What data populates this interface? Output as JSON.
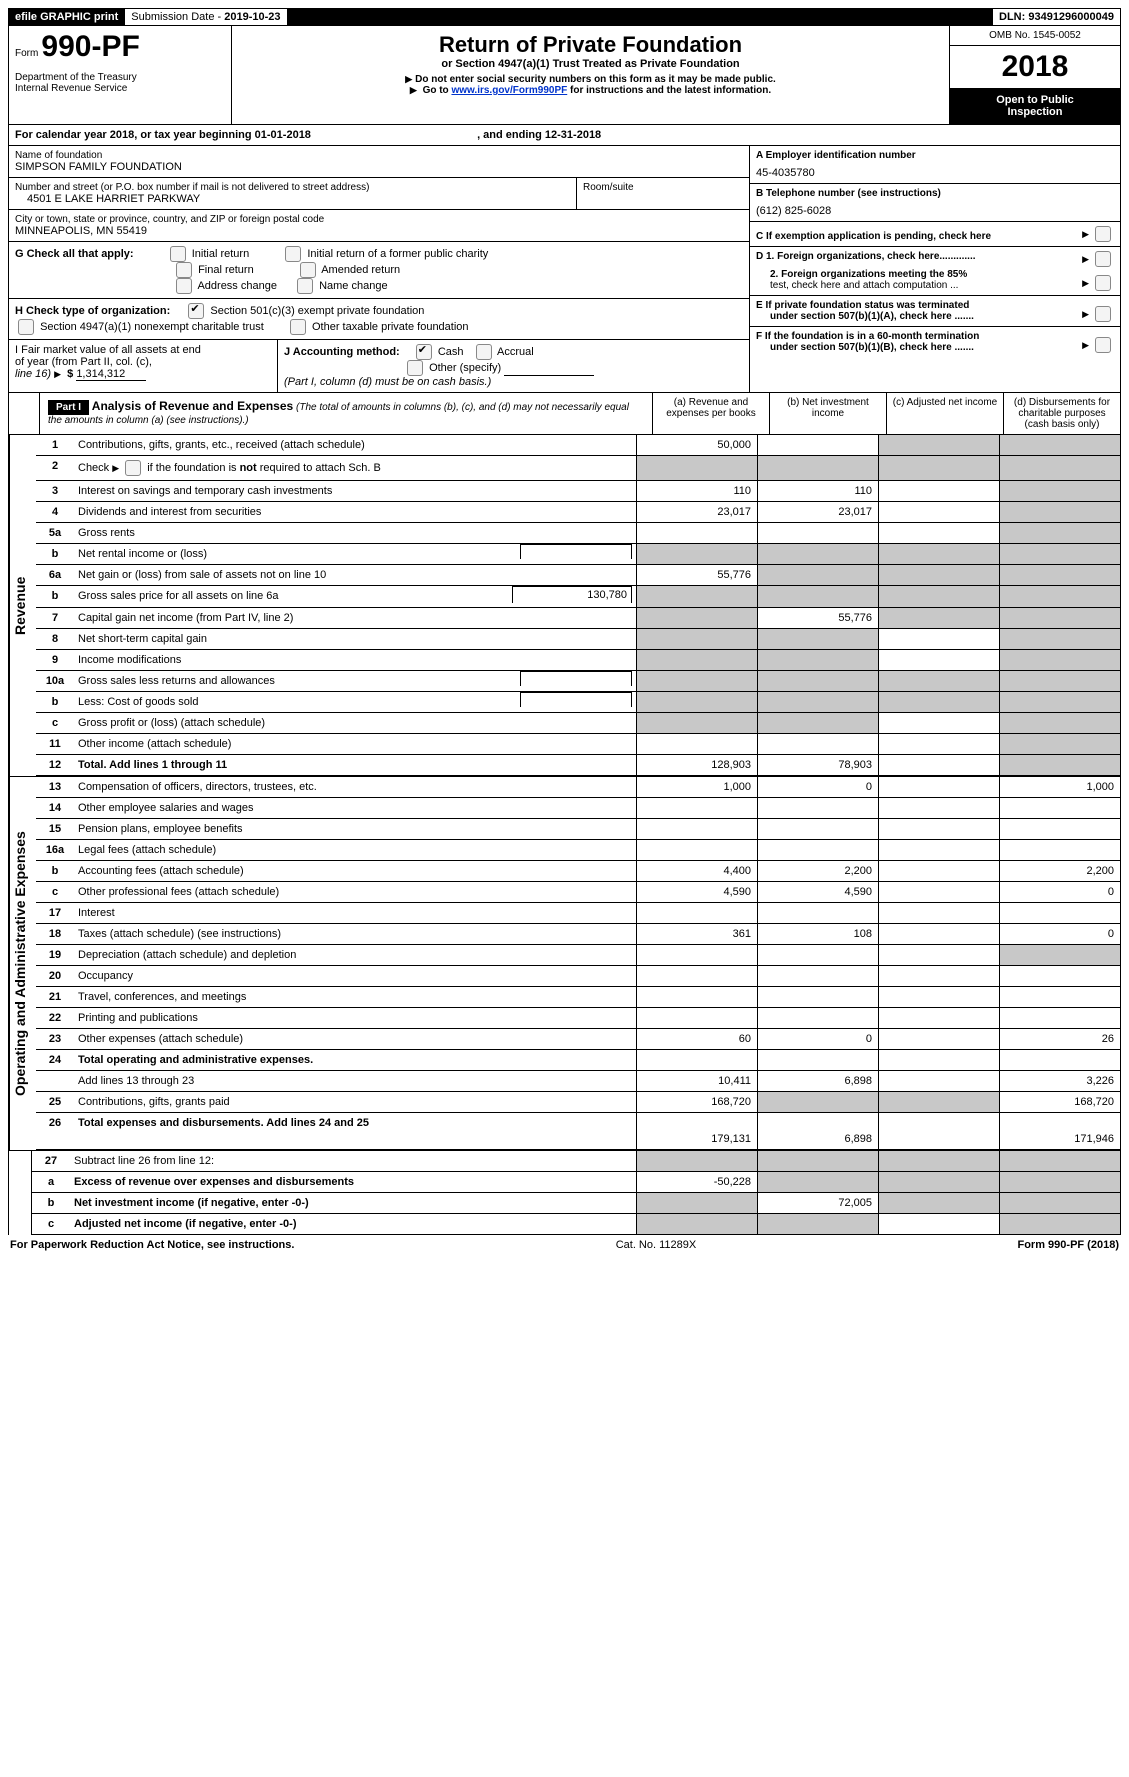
{
  "topbar": {
    "efile": "efile GRAPHIC print",
    "subdate_label": "Submission Date -",
    "subdate": "2019-10-23",
    "dln_label": "DLN:",
    "dln": "93491296000049"
  },
  "header": {
    "form_label": "Form",
    "form_no": "990-PF",
    "dept1": "Department of the Treasury",
    "dept2": "Internal Revenue Service",
    "title": "Return of Private Foundation",
    "subtitle": "or Section 4947(a)(1) Trust Treated as Private Foundation",
    "warn": "Do not enter social security numbers on this form as it may be made public.",
    "goto_pre": "Go to ",
    "goto_link": "www.irs.gov/Form990PF",
    "goto_post": " for instructions and the latest information.",
    "omb": "OMB No. 1545-0052",
    "year": "2018",
    "inspect1": "Open to Public",
    "inspect2": "Inspection"
  },
  "calyear": {
    "pre": "For calendar year 2018, or tax year beginning ",
    "begin": "01-01-2018",
    "mid": ", and ending ",
    "end": "12-31-2018"
  },
  "entity": {
    "name_label": "Name of foundation",
    "name": "SIMPSON FAMILY FOUNDATION",
    "street_label": "Number and street (or P.O. box number if mail is not delivered to street address)",
    "street": "4501 E LAKE HARRIET PARKWAY",
    "room_label": "Room/suite",
    "city_label": "City or town, state or province, country, and ZIP or foreign postal code",
    "city": "MINNEAPOLIS, MN  55419",
    "ein_label": "A Employer identification number",
    "ein": "45-4035780",
    "tel_label": "B Telephone number (see instructions)",
    "tel": "(612) 825-6028",
    "c": "C  If exemption application is pending, check here",
    "d1": "D 1. Foreign organizations, check here.............",
    "d2a": "2. Foreign organizations meeting the 85%",
    "d2b": "test, check here and attach computation ...",
    "e1": "E   If private foundation status was terminated",
    "e2": "under section 507(b)(1)(A), check here .......",
    "f1": "F   If the foundation is in a 60-month termination",
    "f2": "under section 507(b)(1)(B), check here ......."
  },
  "g": {
    "label": "G Check all that apply:",
    "o1": "Initial return",
    "o2": "Initial return of a former public charity",
    "o3": "Final return",
    "o4": "Amended return",
    "o5": "Address change",
    "o6": "Name change"
  },
  "h": {
    "label": "H Check type of organization:",
    "o1": "Section 501(c)(3) exempt private foundation",
    "o2": "Section 4947(a)(1) nonexempt charitable trust",
    "o3": "Other taxable private foundation"
  },
  "i": {
    "label1": "I Fair market value of all assets at end",
    "label2": "of year (from Part II, col. (c),",
    "label3": "line 16)",
    "sym": "$",
    "val": "1,314,312"
  },
  "j": {
    "label": "J Accounting method:",
    "o1": "Cash",
    "o2": "Accrual",
    "o3": "Other (specify)",
    "note": "(Part I, column (d) must be on cash basis.)"
  },
  "part1": {
    "tag": "Part I",
    "title": "Analysis of Revenue and Expenses",
    "note": "(The total of amounts in columns (b), (c), and (d) may not necessarily equal the amounts in column (a) (see instructions).)",
    "cols": {
      "a": "(a)    Revenue and expenses per books",
      "b": "(b)    Net investment income",
      "c": "(c)    Adjusted net income",
      "d": "(d)    Disbursements for charitable purposes (cash basis only)"
    }
  },
  "sections": {
    "rev": "Revenue",
    "exp": "Operating and Administrative Expenses"
  },
  "lines": [
    {
      "n": "1",
      "label": "Contributions, gifts, grants, etc., received (attach schedule)",
      "a": "50,000",
      "b": "",
      "c": "s",
      "d": "s"
    },
    {
      "n": "2",
      "label": "Check ▶ ☐ if the foundation is not required to attach Sch. B",
      "a": "s",
      "b": "s",
      "c": "s",
      "d": "s",
      "chk": true
    },
    {
      "n": "3",
      "label": "Interest on savings and temporary cash investments",
      "a": "110",
      "b": "110",
      "c": "",
      "d": "s"
    },
    {
      "n": "4",
      "label": "Dividends and interest from securities",
      "a": "23,017",
      "b": "23,017",
      "c": "",
      "d": "s"
    },
    {
      "n": "5a",
      "label": "Gross rents",
      "a": "",
      "b": "",
      "c": "",
      "d": "s"
    },
    {
      "n": "b",
      "label": "Net rental income or (loss)",
      "a": "s",
      "b": "s",
      "c": "s",
      "d": "s",
      "inline": true
    },
    {
      "n": "6a",
      "label": "Net gain or (loss) from sale of assets not on line 10",
      "a": "55,776",
      "b": "s",
      "c": "s",
      "d": "s"
    },
    {
      "n": "b",
      "label": "Gross sales price for all assets on line 6a",
      "a": "s",
      "b": "s",
      "c": "s",
      "d": "s",
      "inlineVal": "130,780"
    },
    {
      "n": "7",
      "label": "Capital gain net income (from Part IV, line 2)",
      "a": "s",
      "b": "55,776",
      "c": "s",
      "d": "s"
    },
    {
      "n": "8",
      "label": "Net short-term capital gain",
      "a": "s",
      "b": "s",
      "c": "",
      "d": "s"
    },
    {
      "n": "9",
      "label": "Income modifications",
      "a": "s",
      "b": "s",
      "c": "",
      "d": "s"
    },
    {
      "n": "10a",
      "label": "Gross sales less returns and allowances",
      "a": "s",
      "b": "s",
      "c": "s",
      "d": "s",
      "inline": true
    },
    {
      "n": "b",
      "label": "Less: Cost of goods sold",
      "a": "s",
      "b": "s",
      "c": "s",
      "d": "s",
      "inline": true
    },
    {
      "n": "c",
      "label": "Gross profit or (loss) (attach schedule)",
      "a": "s",
      "b": "s",
      "c": "",
      "d": "s"
    },
    {
      "n": "11",
      "label": "Other income (attach schedule)",
      "a": "",
      "b": "",
      "c": "",
      "d": "s"
    },
    {
      "n": "12",
      "label": "Total. Add lines 1 through 11",
      "a": "128,903",
      "b": "78,903",
      "c": "",
      "d": "s",
      "bold": true
    }
  ],
  "exp_lines": [
    {
      "n": "13",
      "label": "Compensation of officers, directors, trustees, etc.",
      "a": "1,000",
      "b": "0",
      "c": "",
      "d": "1,000"
    },
    {
      "n": "14",
      "label": "Other employee salaries and wages",
      "a": "",
      "b": "",
      "c": "",
      "d": ""
    },
    {
      "n": "15",
      "label": "Pension plans, employee benefits",
      "a": "",
      "b": "",
      "c": "",
      "d": ""
    },
    {
      "n": "16a",
      "label": "Legal fees (attach schedule)",
      "a": "",
      "b": "",
      "c": "",
      "d": ""
    },
    {
      "n": "b",
      "label": "Accounting fees (attach schedule)",
      "a": "4,400",
      "b": "2,200",
      "c": "",
      "d": "2,200"
    },
    {
      "n": "c",
      "label": "Other professional fees (attach schedule)",
      "a": "4,590",
      "b": "4,590",
      "c": "",
      "d": "0"
    },
    {
      "n": "17",
      "label": "Interest",
      "a": "",
      "b": "",
      "c": "",
      "d": ""
    },
    {
      "n": "18",
      "label": "Taxes (attach schedule) (see instructions)",
      "a": "361",
      "b": "108",
      "c": "",
      "d": "0"
    },
    {
      "n": "19",
      "label": "Depreciation (attach schedule) and depletion",
      "a": "",
      "b": "",
      "c": "",
      "d": "s"
    },
    {
      "n": "20",
      "label": "Occupancy",
      "a": "",
      "b": "",
      "c": "",
      "d": ""
    },
    {
      "n": "21",
      "label": "Travel, conferences, and meetings",
      "a": "",
      "b": "",
      "c": "",
      "d": ""
    },
    {
      "n": "22",
      "label": "Printing and publications",
      "a": "",
      "b": "",
      "c": "",
      "d": ""
    },
    {
      "n": "23",
      "label": "Other expenses (attach schedule)",
      "a": "60",
      "b": "0",
      "c": "",
      "d": "26"
    },
    {
      "n": "24",
      "label": "Total operating and administrative expenses.",
      "bold": true,
      "nobox": true
    },
    {
      "n": "",
      "label": "Add lines 13 through 23",
      "a": "10,411",
      "b": "6,898",
      "c": "",
      "d": "3,226"
    },
    {
      "n": "25",
      "label": "Contributions, gifts, grants paid",
      "a": "168,720",
      "b": "s",
      "c": "s",
      "d": "168,720"
    },
    {
      "n": "26",
      "label": "Total expenses and disbursements. Add lines 24 and 25",
      "a": "179,131",
      "b": "6,898",
      "c": "",
      "d": "171,946",
      "bold": true,
      "tall": true
    }
  ],
  "tail": [
    {
      "n": "27",
      "label": "Subtract line 26 from line 12:",
      "a": "s",
      "b": "s",
      "c": "s",
      "d": "s"
    },
    {
      "n": "a",
      "label": "Excess of revenue over expenses and disbursements",
      "a": "-50,228",
      "b": "s",
      "c": "s",
      "d": "s",
      "bold": true
    },
    {
      "n": "b",
      "label": "Net investment income (if negative, enter -0-)",
      "a": "s",
      "b": "72,005",
      "c": "s",
      "d": "s",
      "bold": true
    },
    {
      "n": "c",
      "label": "Adjusted net income (if negative, enter -0-)",
      "a": "s",
      "b": "s",
      "c": "",
      "d": "s",
      "bold": true
    }
  ],
  "footer": {
    "left": "For Paperwork Reduction Act Notice, see instructions.",
    "mid": "Cat. No. 11289X",
    "right": "Form 990-PF (2018)"
  }
}
